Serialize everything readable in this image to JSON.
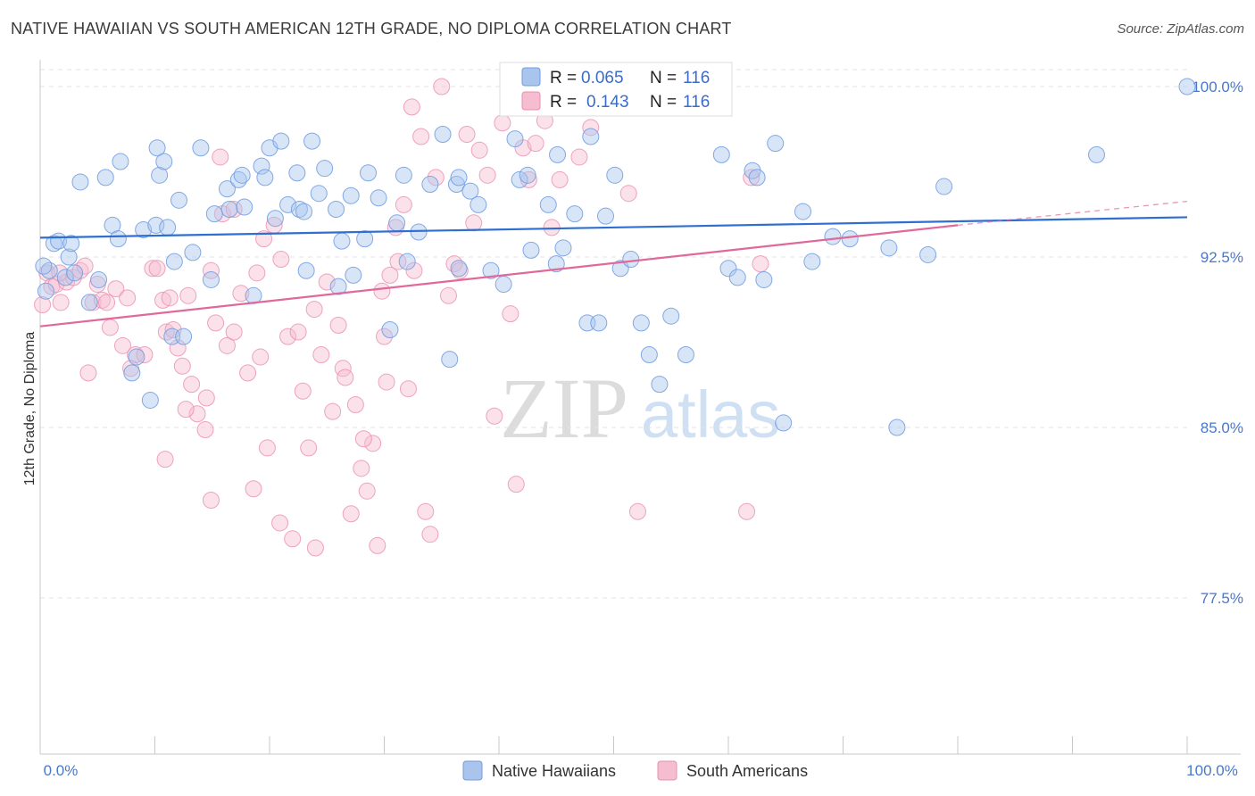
{
  "title": "NATIVE HAWAIIAN VS SOUTH AMERICAN 12TH GRADE, NO DIPLOMA CORRELATION CHART",
  "source": "Source: ZipAtlas.com",
  "watermark": {
    "zip": "ZIP",
    "atlas": "atlas"
  },
  "colors": {
    "blue_fill": "#a9c5ee",
    "blue_stroke": "#6f9be0",
    "blue_line": "#2f6fd0",
    "pink_fill": "#f6bcd0",
    "pink_stroke": "#ea8fb0",
    "pink_line": "#e0689a",
    "axis_text": "#4a78c8",
    "grid": "#e3e3e3"
  },
  "chart_data": {
    "type": "scatter",
    "title": "NATIVE HAWAIIAN VS SOUTH AMERICAN 12TH GRADE, NO DIPLOMA CORRELATION CHART",
    "xlabel": "",
    "ylabel": "12th Grade, No Diploma",
    "xlim": [
      0,
      100
    ],
    "ylim": [
      70.0,
      100.3
    ],
    "x_tick_labels": [
      "0.0%",
      "100.0%"
    ],
    "y_ticks": [
      77.5,
      85.0,
      92.5,
      100.0
    ],
    "y_tick_labels": [
      "77.5%",
      "85.0%",
      "92.5%",
      "100.0%"
    ],
    "grid": "horizontal dashed",
    "legend_top": [
      {
        "r_label": "R =",
        "r": "0.065",
        "n_label": "N =",
        "n": "116"
      },
      {
        "r_label": "R =",
        "r": "0.143",
        "n_label": "N =",
        "n": "116"
      }
    ],
    "series": [
      {
        "name": "Native Hawaiians",
        "color": "#a9c5ee",
        "trend": {
          "x": [
            0,
            100
          ],
          "y": [
            93.35,
            94.25
          ]
        },
        "points": [
          [
            0.5,
            91.0
          ],
          [
            0.8,
            91.9
          ],
          [
            1.2,
            93.1
          ],
          [
            1.6,
            93.2
          ],
          [
            2.2,
            91.6
          ],
          [
            2.5,
            92.5
          ],
          [
            2.7,
            93.1
          ],
          [
            3.5,
            95.8
          ],
          [
            4.3,
            90.5
          ],
          [
            5.7,
            96.0
          ],
          [
            6.3,
            93.9
          ],
          [
            6.8,
            93.3
          ],
          [
            7.0,
            96.7
          ],
          [
            8.0,
            87.4
          ],
          [
            8.4,
            88.1
          ],
          [
            9.0,
            93.7
          ],
          [
            9.6,
            86.2
          ],
          [
            10.1,
            93.9
          ],
          [
            10.2,
            97.3
          ],
          [
            10.4,
            96.1
          ],
          [
            10.8,
            96.7
          ],
          [
            11.1,
            93.8
          ],
          [
            11.5,
            89.0
          ],
          [
            11.7,
            92.3
          ],
          [
            12.1,
            95.0
          ],
          [
            12.5,
            89.0
          ],
          [
            13.3,
            92.7
          ],
          [
            14.0,
            97.3
          ],
          [
            14.9,
            91.5
          ],
          [
            15.2,
            94.4
          ],
          [
            16.3,
            95.5
          ],
          [
            16.5,
            94.6
          ],
          [
            17.3,
            95.9
          ],
          [
            17.8,
            94.7
          ],
          [
            18.6,
            90.8
          ],
          [
            19.3,
            96.5
          ],
          [
            19.6,
            96.0
          ],
          [
            20.0,
            97.3
          ],
          [
            20.5,
            94.2
          ],
          [
            21.0,
            97.6
          ],
          [
            21.6,
            94.8
          ],
          [
            22.4,
            96.2
          ],
          [
            22.6,
            94.6
          ],
          [
            23.0,
            94.5
          ],
          [
            23.7,
            97.6
          ],
          [
            24.3,
            95.3
          ],
          [
            24.8,
            96.4
          ],
          [
            25.8,
            94.6
          ],
          [
            26.0,
            91.2
          ],
          [
            26.3,
            93.2
          ],
          [
            27.1,
            95.2
          ],
          [
            27.3,
            91.7
          ],
          [
            28.3,
            93.3
          ],
          [
            28.6,
            96.2
          ],
          [
            29.5,
            95.1
          ],
          [
            30.5,
            89.3
          ],
          [
            31.1,
            94.0
          ],
          [
            31.7,
            96.1
          ],
          [
            32.0,
            92.3
          ],
          [
            33.0,
            93.6
          ],
          [
            34.0,
            95.7
          ],
          [
            35.1,
            97.9
          ],
          [
            35.7,
            88.0
          ],
          [
            36.3,
            95.7
          ],
          [
            36.5,
            92.0
          ],
          [
            37.5,
            95.4
          ],
          [
            38.2,
            94.8
          ],
          [
            39.3,
            91.9
          ],
          [
            40.4,
            91.3
          ],
          [
            41.4,
            97.7
          ],
          [
            41.8,
            95.9
          ],
          [
            42.5,
            96.1
          ],
          [
            42.8,
            92.8
          ],
          [
            44.3,
            94.8
          ],
          [
            45.1,
            97.0
          ],
          [
            45.6,
            92.9
          ],
          [
            46.6,
            94.4
          ],
          [
            47.7,
            89.6
          ],
          [
            48.0,
            97.8
          ],
          [
            48.7,
            89.6
          ],
          [
            49.3,
            94.3
          ],
          [
            50.1,
            96.1
          ],
          [
            50.6,
            92.0
          ],
          [
            51.5,
            92.4
          ],
          [
            52.4,
            89.6
          ],
          [
            53.1,
            88.2
          ],
          [
            54.0,
            86.9
          ],
          [
            55.0,
            89.9
          ],
          [
            56.3,
            88.2
          ],
          [
            57.0,
            100.0
          ],
          [
            57.4,
            100.0
          ],
          [
            59.4,
            97.0
          ],
          [
            60.0,
            92.0
          ],
          [
            60.8,
            91.6
          ],
          [
            62.1,
            96.3
          ],
          [
            62.5,
            96.0
          ],
          [
            63.1,
            91.5
          ],
          [
            64.1,
            97.5
          ],
          [
            64.8,
            85.2
          ],
          [
            66.5,
            94.5
          ],
          [
            67.3,
            92.3
          ],
          [
            69.1,
            93.4
          ],
          [
            70.6,
            93.3
          ],
          [
            74.0,
            92.9
          ],
          [
            74.7,
            85.0
          ],
          [
            77.4,
            92.6
          ],
          [
            78.8,
            95.6
          ],
          [
            92.1,
            97.0
          ],
          [
            100.0,
            100.0
          ],
          [
            0.3,
            92.1
          ],
          [
            3.0,
            91.8
          ],
          [
            5.1,
            91.5
          ],
          [
            17.6,
            96.1
          ],
          [
            23.2,
            91.9
          ],
          [
            45.0,
            92.2
          ],
          [
            36.5,
            96.0
          ]
        ]
      },
      {
        "name": "South Americans",
        "color": "#f6bcd0",
        "trend": {
          "x": [
            0,
            80
          ],
          "y": [
            89.45,
            93.9
          ],
          "dashed_to": [
            100,
            94.95
          ]
        },
        "points": [
          [
            0.2,
            90.4
          ],
          [
            0.6,
            91.8
          ],
          [
            1.0,
            91.2
          ],
          [
            1.4,
            91.3
          ],
          [
            1.8,
            90.5
          ],
          [
            2.3,
            91.4
          ],
          [
            2.9,
            91.6
          ],
          [
            3.5,
            91.9
          ],
          [
            4.2,
            87.4
          ],
          [
            4.6,
            90.5
          ],
          [
            5.0,
            91.3
          ],
          [
            5.4,
            90.6
          ],
          [
            6.1,
            89.4
          ],
          [
            6.6,
            91.1
          ],
          [
            7.2,
            88.6
          ],
          [
            7.6,
            90.7
          ],
          [
            8.3,
            88.2
          ],
          [
            9.1,
            88.2
          ],
          [
            9.8,
            92.0
          ],
          [
            10.2,
            92.0
          ],
          [
            10.7,
            90.6
          ],
          [
            11.0,
            89.2
          ],
          [
            11.3,
            90.7
          ],
          [
            11.6,
            89.3
          ],
          [
            12.0,
            88.5
          ],
          [
            12.4,
            87.7
          ],
          [
            12.9,
            90.8
          ],
          [
            13.2,
            86.9
          ],
          [
            13.7,
            85.6
          ],
          [
            14.4,
            84.9
          ],
          [
            14.9,
            91.9
          ],
          [
            15.3,
            89.6
          ],
          [
            15.9,
            94.4
          ],
          [
            16.3,
            88.6
          ],
          [
            16.9,
            89.2
          ],
          [
            17.5,
            90.9
          ],
          [
            18.1,
            87.4
          ],
          [
            18.6,
            82.3
          ],
          [
            19.2,
            88.1
          ],
          [
            19.8,
            84.1
          ],
          [
            20.4,
            93.9
          ],
          [
            21.0,
            92.4
          ],
          [
            21.6,
            89.0
          ],
          [
            22.0,
            80.1
          ],
          [
            22.5,
            89.2
          ],
          [
            22.9,
            86.6
          ],
          [
            23.4,
            84.1
          ],
          [
            24.0,
            79.7
          ],
          [
            24.5,
            88.2
          ],
          [
            25.0,
            91.4
          ],
          [
            25.5,
            85.7
          ],
          [
            26.0,
            89.5
          ],
          [
            26.4,
            87.6
          ],
          [
            27.1,
            81.2
          ],
          [
            27.5,
            86.0
          ],
          [
            28.0,
            83.2
          ],
          [
            28.5,
            82.2
          ],
          [
            29.0,
            84.3
          ],
          [
            29.4,
            79.8
          ],
          [
            30.0,
            89.0
          ],
          [
            30.5,
            91.7
          ],
          [
            31.2,
            92.3
          ],
          [
            31.7,
            94.8
          ],
          [
            32.1,
            86.7
          ],
          [
            32.6,
            91.9
          ],
          [
            33.2,
            97.8
          ],
          [
            33.6,
            81.3
          ],
          [
            34.0,
            80.3
          ],
          [
            34.5,
            96.0
          ],
          [
            35.0,
            100.0
          ],
          [
            35.6,
            90.8
          ],
          [
            36.1,
            92.2
          ],
          [
            36.6,
            91.9
          ],
          [
            37.2,
            97.9
          ],
          [
            37.8,
            94.0
          ],
          [
            38.3,
            97.2
          ],
          [
            39.0,
            96.1
          ],
          [
            39.6,
            85.5
          ],
          [
            40.3,
            98.4
          ],
          [
            41.0,
            90.0
          ],
          [
            41.5,
            82.5
          ],
          [
            42.1,
            97.3
          ],
          [
            42.6,
            95.9
          ],
          [
            43.2,
            97.5
          ],
          [
            44.0,
            98.5
          ],
          [
            44.6,
            93.8
          ],
          [
            45.3,
            95.9
          ],
          [
            46.0,
            99.2
          ],
          [
            47.0,
            96.9
          ],
          [
            48.0,
            98.2
          ],
          [
            50.0,
            100.0
          ],
          [
            51.3,
            95.3
          ],
          [
            52.1,
            81.3
          ],
          [
            61.6,
            81.3
          ],
          [
            62.0,
            96.0
          ],
          [
            62.8,
            92.2
          ],
          [
            3.9,
            92.1
          ],
          [
            5.8,
            90.5
          ],
          [
            14.5,
            86.3
          ],
          [
            15.7,
            96.9
          ],
          [
            16.9,
            94.6
          ],
          [
            18.9,
            91.8
          ],
          [
            19.5,
            93.3
          ],
          [
            23.9,
            90.2
          ],
          [
            26.6,
            87.2
          ],
          [
            28.2,
            84.5
          ],
          [
            29.8,
            91.0
          ],
          [
            30.2,
            87.0
          ],
          [
            31.0,
            93.8
          ],
          [
            32.4,
            99.1
          ],
          [
            20.9,
            80.8
          ],
          [
            14.9,
            81.8
          ],
          [
            10.9,
            83.6
          ],
          [
            7.9,
            87.6
          ],
          [
            12.7,
            85.8
          ],
          [
            1.7,
            91.8
          ]
        ]
      }
    ]
  }
}
